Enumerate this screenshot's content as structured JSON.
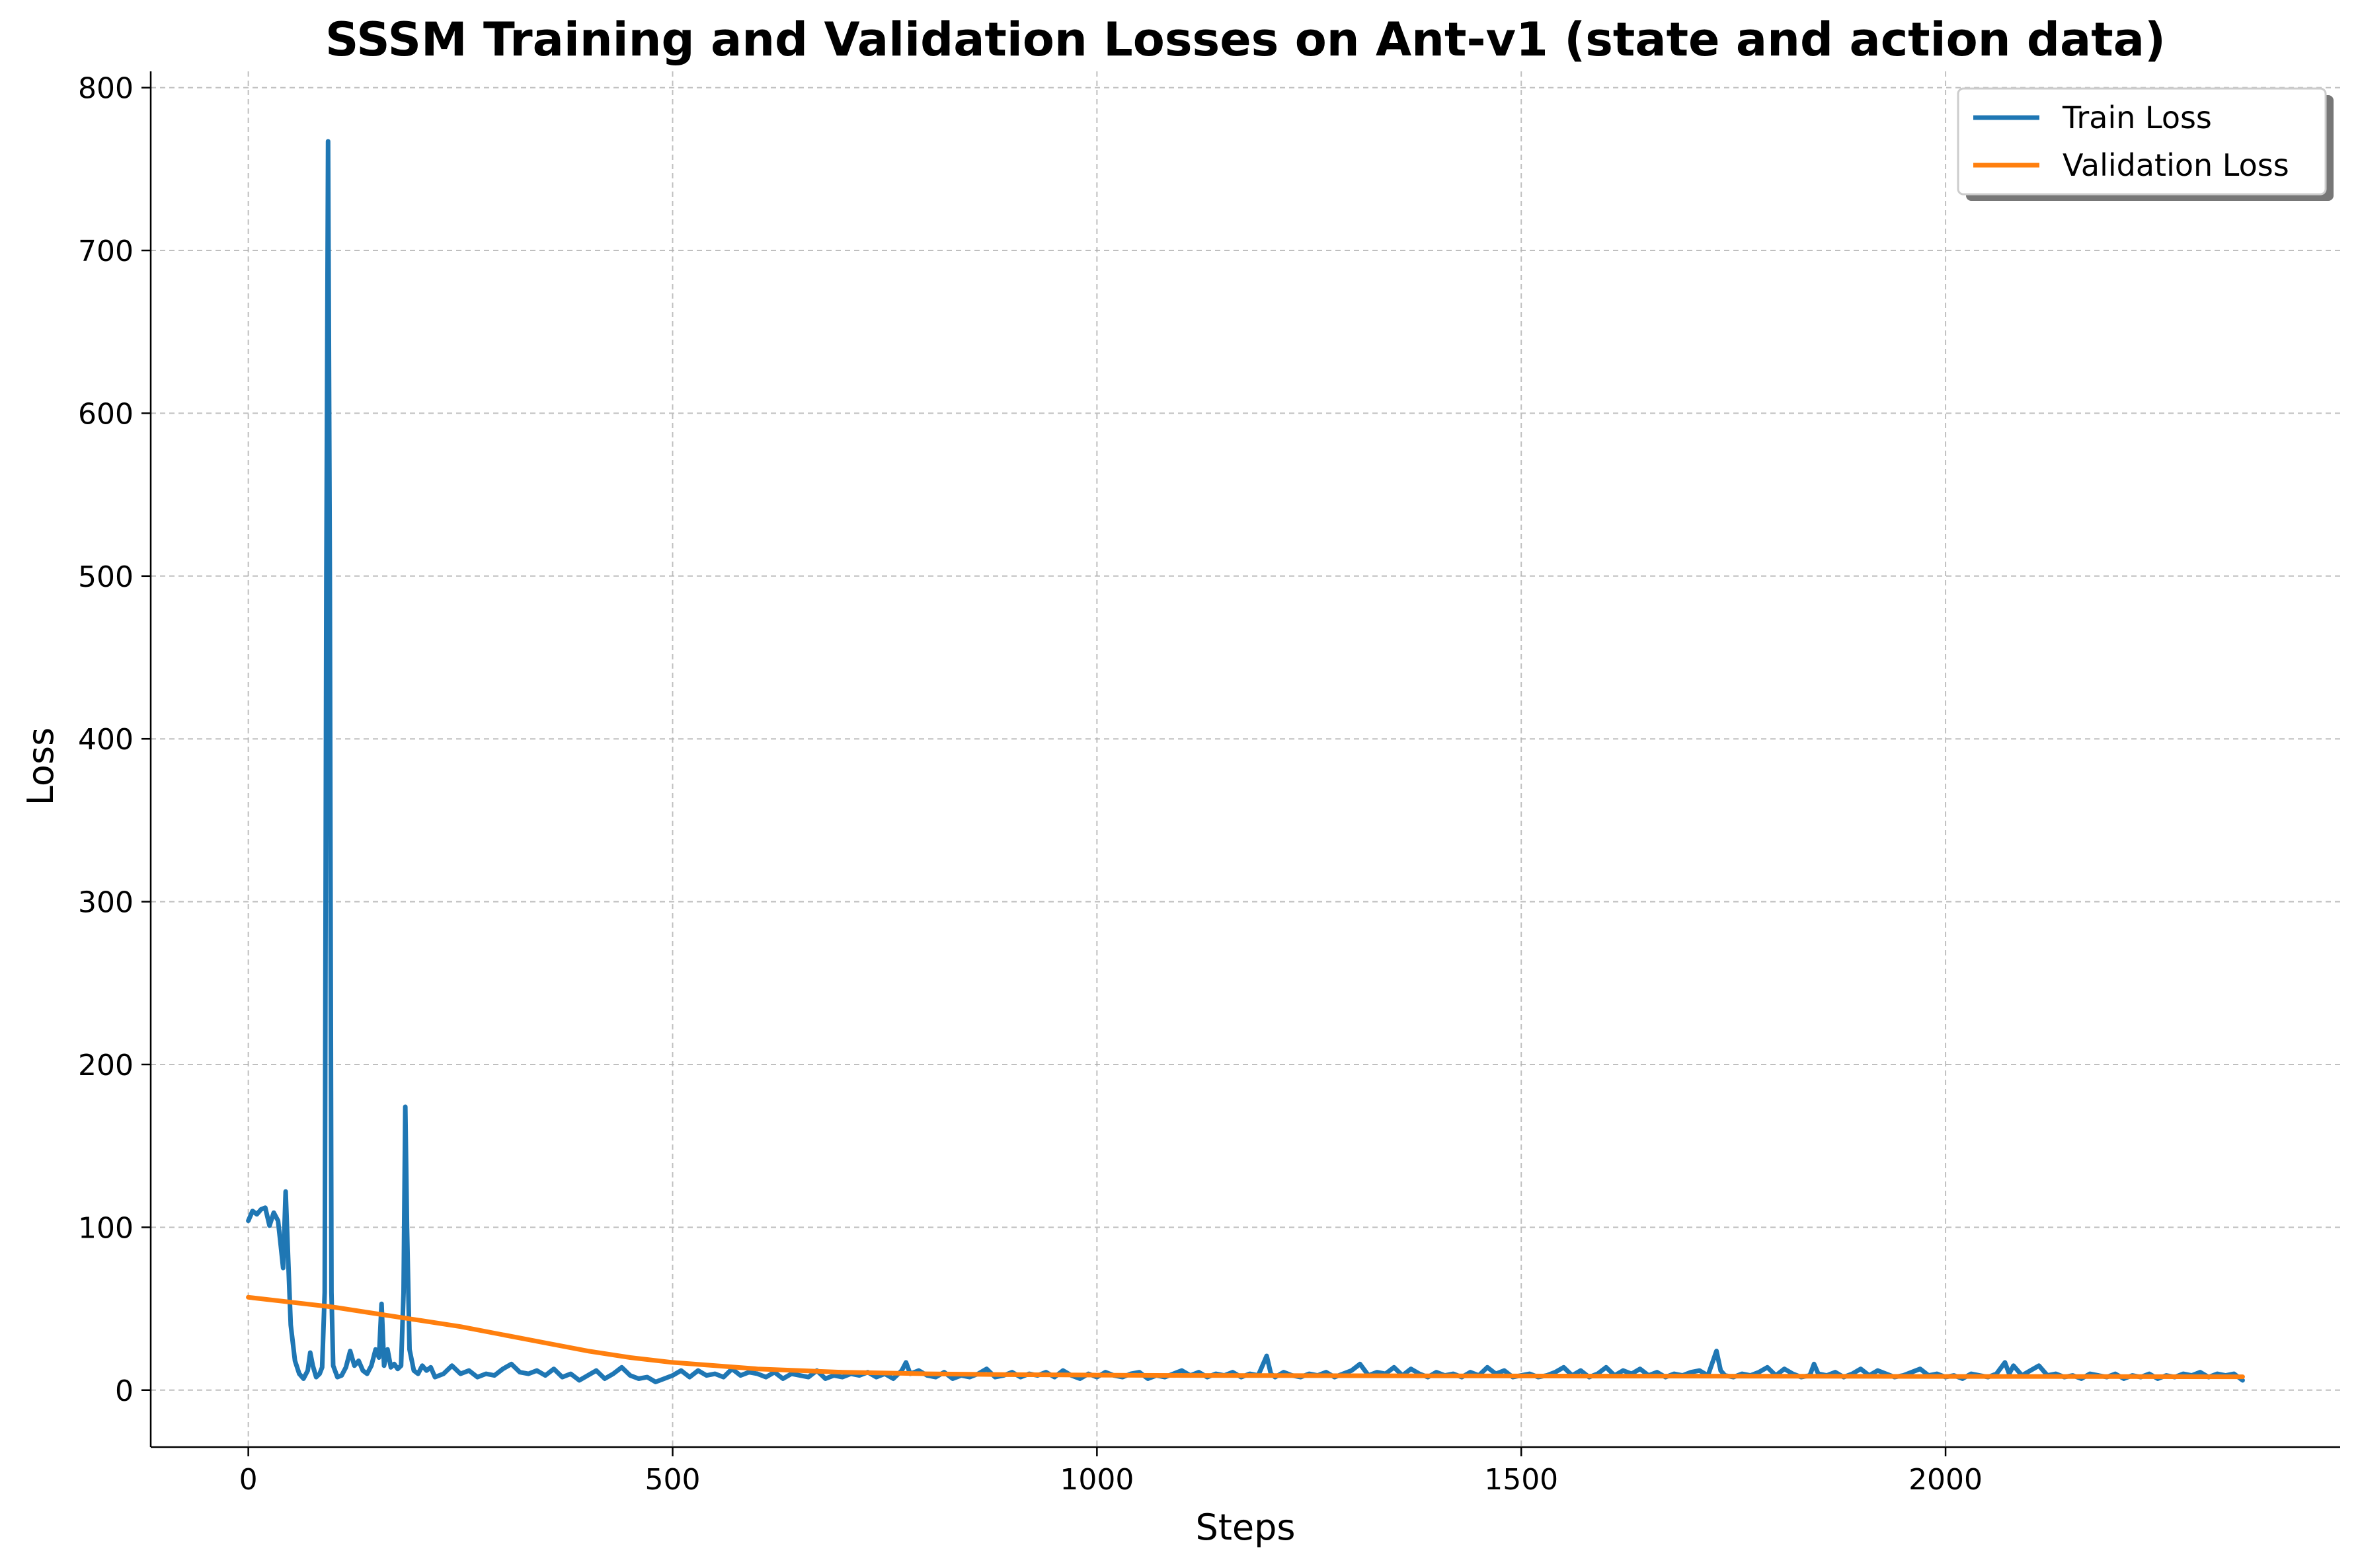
{
  "chart_data": {
    "type": "line",
    "title": "SSSM Training and Validation Losses on Ant-v1 (state and action data)",
    "xlabel": "Steps",
    "ylabel": "Loss",
    "xlim": [
      -115,
      2465
    ],
    "ylim": [
      -35,
      810
    ],
    "xticks": [
      0,
      500,
      1000,
      1500,
      2000
    ],
    "xtick_labels": [
      "0",
      "500",
      "1000",
      "1500",
      "2000"
    ],
    "yticks": [
      0,
      100,
      200,
      300,
      400,
      500,
      600,
      700,
      800
    ],
    "ytick_labels": [
      "0",
      "100",
      "200",
      "300",
      "400",
      "500",
      "600",
      "700",
      "800"
    ],
    "grid": true,
    "legend_position": "top-right",
    "series": [
      {
        "name": "Train Loss",
        "color": "#1f77b4",
        "points": [
          [
            0,
            104
          ],
          [
            5,
            110
          ],
          [
            10,
            108
          ],
          [
            15,
            111
          ],
          [
            20,
            112
          ],
          [
            25,
            101
          ],
          [
            30,
            109
          ],
          [
            35,
            104
          ],
          [
            38,
            90
          ],
          [
            41,
            75
          ],
          [
            44,
            122
          ],
          [
            47,
            80
          ],
          [
            50,
            40
          ],
          [
            55,
            18
          ],
          [
            60,
            10
          ],
          [
            65,
            7
          ],
          [
            70,
            12
          ],
          [
            73,
            23
          ],
          [
            76,
            15
          ],
          [
            80,
            8
          ],
          [
            84,
            10
          ],
          [
            87,
            14
          ],
          [
            90,
            60
          ],
          [
            92,
            500
          ],
          [
            94,
            767
          ],
          [
            96,
            500
          ],
          [
            98,
            60
          ],
          [
            100,
            15
          ],
          [
            105,
            8
          ],
          [
            110,
            9
          ],
          [
            115,
            14
          ],
          [
            120,
            24
          ],
          [
            125,
            15
          ],
          [
            130,
            18
          ],
          [
            135,
            12
          ],
          [
            140,
            10
          ],
          [
            145,
            15
          ],
          [
            150,
            25
          ],
          [
            154,
            20
          ],
          [
            157,
            53
          ],
          [
            160,
            15
          ],
          [
            164,
            25
          ],
          [
            168,
            14
          ],
          [
            172,
            16
          ],
          [
            176,
            13
          ],
          [
            180,
            15
          ],
          [
            183,
            60
          ],
          [
            185,
            174
          ],
          [
            187,
            100
          ],
          [
            190,
            25
          ],
          [
            195,
            12
          ],
          [
            200,
            10
          ],
          [
            205,
            15
          ],
          [
            210,
            12
          ],
          [
            215,
            14
          ],
          [
            220,
            8
          ],
          [
            230,
            10
          ],
          [
            240,
            15
          ],
          [
            250,
            10
          ],
          [
            260,
            12
          ],
          [
            270,
            8
          ],
          [
            280,
            10
          ],
          [
            290,
            9
          ],
          [
            300,
            13
          ],
          [
            310,
            16
          ],
          [
            320,
            11
          ],
          [
            330,
            10
          ],
          [
            340,
            12
          ],
          [
            350,
            9
          ],
          [
            360,
            13
          ],
          [
            370,
            8
          ],
          [
            380,
            10
          ],
          [
            390,
            6
          ],
          [
            400,
            9
          ],
          [
            410,
            12
          ],
          [
            420,
            7
          ],
          [
            430,
            10
          ],
          [
            440,
            14
          ],
          [
            450,
            9
          ],
          [
            460,
            7
          ],
          [
            470,
            8
          ],
          [
            480,
            5
          ],
          [
            490,
            7
          ],
          [
            500,
            9
          ],
          [
            510,
            12
          ],
          [
            520,
            8
          ],
          [
            530,
            12
          ],
          [
            540,
            9
          ],
          [
            550,
            10
          ],
          [
            560,
            8
          ],
          [
            570,
            13
          ],
          [
            580,
            9
          ],
          [
            590,
            11
          ],
          [
            600,
            10
          ],
          [
            610,
            8
          ],
          [
            620,
            11
          ],
          [
            630,
            7
          ],
          [
            640,
            10
          ],
          [
            650,
            9
          ],
          [
            660,
            8
          ],
          [
            670,
            12
          ],
          [
            680,
            7
          ],
          [
            690,
            9
          ],
          [
            700,
            8
          ],
          [
            710,
            10
          ],
          [
            720,
            9
          ],
          [
            730,
            11
          ],
          [
            740,
            8
          ],
          [
            750,
            10
          ],
          [
            760,
            7
          ],
          [
            770,
            12
          ],
          [
            775,
            17
          ],
          [
            780,
            10
          ],
          [
            790,
            12
          ],
          [
            800,
            9
          ],
          [
            810,
            8
          ],
          [
            820,
            11
          ],
          [
            830,
            7
          ],
          [
            840,
            9
          ],
          [
            850,
            8
          ],
          [
            860,
            10
          ],
          [
            870,
            13
          ],
          [
            880,
            8
          ],
          [
            890,
            9
          ],
          [
            900,
            11
          ],
          [
            910,
            8
          ],
          [
            920,
            10
          ],
          [
            930,
            9
          ],
          [
            940,
            11
          ],
          [
            950,
            8
          ],
          [
            960,
            12
          ],
          [
            970,
            9
          ],
          [
            980,
            7
          ],
          [
            990,
            10
          ],
          [
            1000,
            8
          ],
          [
            1010,
            11
          ],
          [
            1020,
            9
          ],
          [
            1030,
            8
          ],
          [
            1040,
            10
          ],
          [
            1050,
            11
          ],
          [
            1060,
            7
          ],
          [
            1070,
            9
          ],
          [
            1080,
            8
          ],
          [
            1090,
            10
          ],
          [
            1100,
            12
          ],
          [
            1110,
            9
          ],
          [
            1120,
            11
          ],
          [
            1130,
            8
          ],
          [
            1140,
            10
          ],
          [
            1150,
            9
          ],
          [
            1160,
            11
          ],
          [
            1170,
            8
          ],
          [
            1180,
            10
          ],
          [
            1190,
            9
          ],
          [
            1200,
            21
          ],
          [
            1205,
            10
          ],
          [
            1210,
            8
          ],
          [
            1220,
            11
          ],
          [
            1230,
            9
          ],
          [
            1240,
            8
          ],
          [
            1250,
            10
          ],
          [
            1260,
            9
          ],
          [
            1270,
            11
          ],
          [
            1280,
            8
          ],
          [
            1290,
            10
          ],
          [
            1300,
            12
          ],
          [
            1310,
            16
          ],
          [
            1320,
            9
          ],
          [
            1330,
            11
          ],
          [
            1340,
            10
          ],
          [
            1350,
            14
          ],
          [
            1360,
            9
          ],
          [
            1370,
            13
          ],
          [
            1380,
            10
          ],
          [
            1390,
            8
          ],
          [
            1400,
            11
          ],
          [
            1410,
            9
          ],
          [
            1420,
            10
          ],
          [
            1430,
            8
          ],
          [
            1440,
            11
          ],
          [
            1450,
            9
          ],
          [
            1460,
            14
          ],
          [
            1470,
            10
          ],
          [
            1480,
            12
          ],
          [
            1490,
            8
          ],
          [
            1500,
            9
          ],
          [
            1510,
            10
          ],
          [
            1520,
            8
          ],
          [
            1530,
            9
          ],
          [
            1540,
            11
          ],
          [
            1550,
            14
          ],
          [
            1560,
            9
          ],
          [
            1570,
            12
          ],
          [
            1580,
            8
          ],
          [
            1590,
            10
          ],
          [
            1600,
            14
          ],
          [
            1610,
            9
          ],
          [
            1620,
            12
          ],
          [
            1630,
            10
          ],
          [
            1640,
            13
          ],
          [
            1650,
            9
          ],
          [
            1660,
            11
          ],
          [
            1670,
            8
          ],
          [
            1680,
            10
          ],
          [
            1690,
            9
          ],
          [
            1700,
            11
          ],
          [
            1710,
            12
          ],
          [
            1720,
            9
          ],
          [
            1730,
            24
          ],
          [
            1735,
            12
          ],
          [
            1740,
            9
          ],
          [
            1750,
            8
          ],
          [
            1760,
            10
          ],
          [
            1770,
            9
          ],
          [
            1780,
            11
          ],
          [
            1790,
            14
          ],
          [
            1800,
            9
          ],
          [
            1810,
            13
          ],
          [
            1820,
            10
          ],
          [
            1830,
            8
          ],
          [
            1840,
            9
          ],
          [
            1845,
            16
          ],
          [
            1850,
            10
          ],
          [
            1860,
            9
          ],
          [
            1870,
            11
          ],
          [
            1880,
            8
          ],
          [
            1890,
            10
          ],
          [
            1900,
            13
          ],
          [
            1910,
            9
          ],
          [
            1920,
            12
          ],
          [
            1930,
            10
          ],
          [
            1940,
            8
          ],
          [
            1950,
            9
          ],
          [
            1960,
            11
          ],
          [
            1970,
            13
          ],
          [
            1980,
            9
          ],
          [
            1990,
            10
          ],
          [
            2000,
            8
          ],
          [
            2010,
            9
          ],
          [
            2020,
            7
          ],
          [
            2030,
            10
          ],
          [
            2040,
            9
          ],
          [
            2050,
            8
          ],
          [
            2060,
            10
          ],
          [
            2070,
            17
          ],
          [
            2075,
            10
          ],
          [
            2080,
            15
          ],
          [
            2090,
            9
          ],
          [
            2100,
            12
          ],
          [
            2110,
            15
          ],
          [
            2120,
            9
          ],
          [
            2130,
            10
          ],
          [
            2140,
            8
          ],
          [
            2150,
            9
          ],
          [
            2160,
            7
          ],
          [
            2170,
            10
          ],
          [
            2180,
            9
          ],
          [
            2190,
            8
          ],
          [
            2200,
            10
          ],
          [
            2210,
            7
          ],
          [
            2220,
            9
          ],
          [
            2230,
            8
          ],
          [
            2240,
            10
          ],
          [
            2250,
            7
          ],
          [
            2260,
            9
          ],
          [
            2270,
            8
          ],
          [
            2280,
            10
          ],
          [
            2290,
            9
          ],
          [
            2300,
            11
          ],
          [
            2310,
            8
          ],
          [
            2320,
            10
          ],
          [
            2330,
            9
          ],
          [
            2340,
            10
          ],
          [
            2350,
            6
          ]
        ]
      },
      {
        "name": "Validation Loss",
        "color": "#ff7f0e",
        "points": [
          [
            0,
            57
          ],
          [
            50,
            54
          ],
          [
            100,
            51
          ],
          [
            150,
            47
          ],
          [
            200,
            43
          ],
          [
            250,
            39
          ],
          [
            300,
            34
          ],
          [
            350,
            29
          ],
          [
            400,
            24
          ],
          [
            450,
            20
          ],
          [
            500,
            17
          ],
          [
            550,
            15
          ],
          [
            600,
            13
          ],
          [
            650,
            12
          ],
          [
            700,
            11
          ],
          [
            750,
            10.5
          ],
          [
            800,
            10
          ],
          [
            900,
            9.5
          ],
          [
            1000,
            9.2
          ],
          [
            1100,
            9
          ],
          [
            1200,
            8.9
          ],
          [
            1400,
            8.7
          ],
          [
            1600,
            8.6
          ],
          [
            1800,
            8.5
          ],
          [
            2000,
            8.4
          ],
          [
            2200,
            8.3
          ],
          [
            2350,
            8.2
          ]
        ]
      }
    ]
  }
}
